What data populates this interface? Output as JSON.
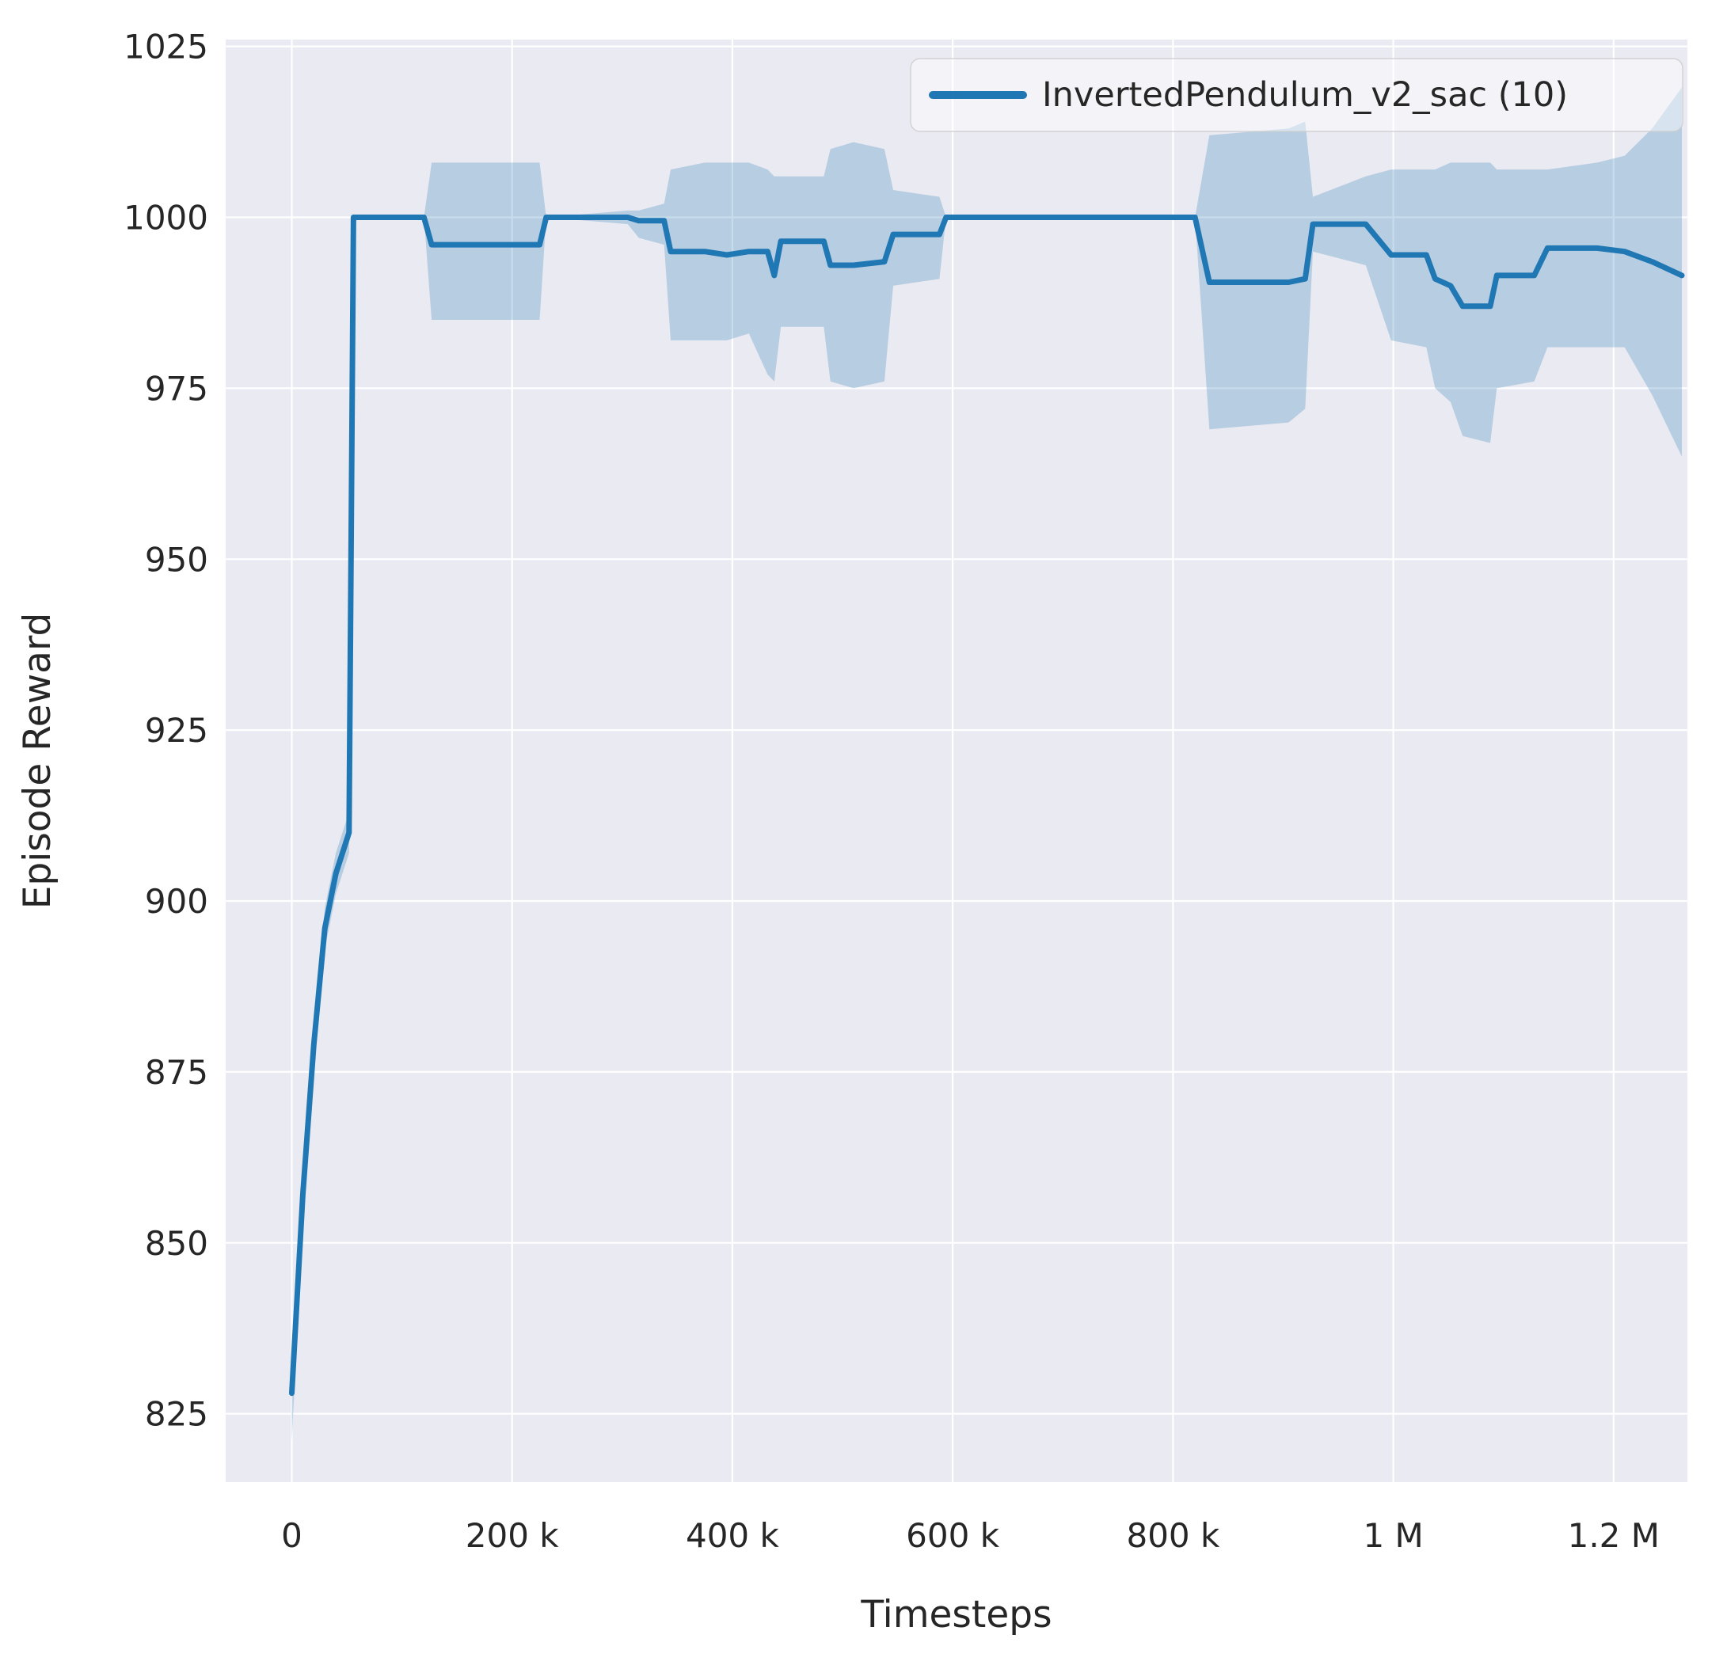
{
  "chart_data": {
    "type": "line",
    "title": "",
    "xlabel": "Timesteps",
    "ylabel": "Episode Reward",
    "xlim": [
      -60000,
      1267000
    ],
    "ylim": [
      815,
      1026
    ],
    "grid": true,
    "legend_position": "upper right",
    "background_color": "#eaeaf2",
    "grid_color": "#ffffff",
    "text_color": "#262626",
    "x_ticks": {
      "values": [
        0,
        200000,
        400000,
        600000,
        800000,
        1000000,
        1200000
      ],
      "labels": [
        "0",
        "200 k",
        "400 k",
        "600 k",
        "800 k",
        "1 M",
        "1.2 M"
      ]
    },
    "y_ticks": {
      "values": [
        825,
        850,
        875,
        900,
        925,
        950,
        975,
        1000,
        1025
      ],
      "labels": [
        "825",
        "850",
        "875",
        "900",
        "925",
        "950",
        "975",
        "1000",
        "1025"
      ]
    },
    "series": [
      {
        "name": "InvertedPendulum_v2_sac (10)",
        "color": "#1f77b4",
        "band_color": "#1f77b4",
        "band_opacity": 0.25,
        "x": [
          0,
          10000,
          20000,
          30000,
          40000,
          52000,
          56000,
          120000,
          127000,
          225000,
          231000,
          305000,
          315000,
          338000,
          344000,
          375000,
          395000,
          415000,
          432000,
          438000,
          444000,
          483000,
          489000,
          510000,
          538000,
          546000,
          588000,
          594000,
          820000,
          833000,
          905000,
          920000,
          927000,
          975000,
          998000,
          1030000,
          1038000,
          1052000,
          1063000,
          1088000,
          1094000,
          1128000,
          1140000,
          1185000,
          1210000,
          1235000,
          1262000
        ],
        "mean": [
          828,
          857,
          879,
          896,
          904,
          910,
          1000,
          1000,
          996,
          996,
          1000,
          1000,
          999.5,
          999.5,
          995,
          995,
          994.5,
          995,
          995,
          991.5,
          996.5,
          996.5,
          993,
          993,
          993.5,
          997.5,
          997.5,
          1000,
          1000,
          990.5,
          990.5,
          991,
          999,
          999,
          994.5,
          994.5,
          991,
          990,
          987,
          987,
          991.5,
          991.5,
          995.5,
          995.5,
          995,
          993.5,
          991.5
        ],
        "lower": [
          821,
          853,
          876,
          893,
          901,
          907,
          1000,
          1000,
          985,
          985,
          1000,
          999,
          997,
          996,
          982,
          982,
          982,
          983,
          977,
          976,
          984,
          984,
          976,
          975,
          976,
          990,
          991,
          1000,
          1000,
          969,
          970,
          972,
          995,
          993,
          982,
          981,
          975,
          973,
          968,
          967,
          975,
          976,
          981,
          981,
          981,
          974,
          965
        ],
        "upper": [
          833,
          861,
          882,
          899,
          907,
          913,
          1000,
          1000,
          1008,
          1008,
          1000,
          1001,
          1001,
          1002,
          1007,
          1008,
          1008,
          1008,
          1007,
          1006,
          1006,
          1006,
          1010,
          1011,
          1010,
          1004,
          1003,
          1000,
          1000,
          1012,
          1013,
          1014,
          1003,
          1006,
          1007,
          1007,
          1007,
          1008,
          1008,
          1008,
          1007,
          1007,
          1007,
          1008,
          1009,
          1013,
          1019
        ]
      }
    ]
  }
}
